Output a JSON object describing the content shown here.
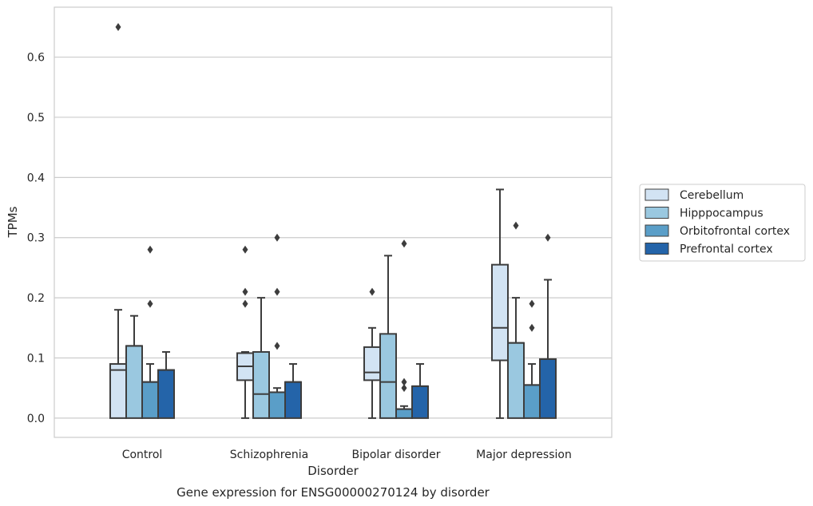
{
  "caption": "Gene expression for ENSG00000270124 by disorder",
  "chart_data": {
    "type": "boxplot",
    "title": "",
    "xlabel": "Disorder",
    "ylabel": "TPMs",
    "ylim": [
      -0.032,
      0.683
    ],
    "yticks": [
      0.0,
      0.1,
      0.2,
      0.3,
      0.4,
      0.5,
      0.6
    ],
    "ytick_labels": [
      "0.0",
      "0.1",
      "0.2",
      "0.3",
      "0.4",
      "0.5",
      "0.6"
    ],
    "grid": "horizontal",
    "legend_placement": "right",
    "categories": [
      "Control",
      "Schizophrenia",
      "Bipolar disorder",
      "Major depression"
    ],
    "series": [
      {
        "name": "Cerebellum",
        "color": "#d2e3f3",
        "boxes": [
          {
            "low": 0.0,
            "q1": 0.0,
            "median": 0.08,
            "q3": 0.09,
            "high": 0.18,
            "outliers": [
              0.65
            ]
          },
          {
            "low": 0.0,
            "q1": 0.063,
            "median": 0.086,
            "q3": 0.108,
            "high": 0.11,
            "outliers": [
              0.19,
              0.21,
              0.28
            ]
          },
          {
            "low": 0.0,
            "q1": 0.063,
            "median": 0.076,
            "q3": 0.118,
            "high": 0.15,
            "outliers": [
              0.21
            ]
          },
          {
            "low": 0.0,
            "q1": 0.096,
            "median": 0.15,
            "q3": 0.255,
            "high": 0.38,
            "outliers": []
          }
        ]
      },
      {
        "name": "Hipppocampus",
        "color": "#9ac8e0",
        "boxes": [
          {
            "low": 0.0,
            "q1": 0.0,
            "median": 0.12,
            "q3": 0.12,
            "high": 0.17,
            "outliers": []
          },
          {
            "low": 0.0,
            "q1": 0.0,
            "median": 0.04,
            "q3": 0.11,
            "high": 0.2,
            "outliers": []
          },
          {
            "low": 0.0,
            "q1": 0.0,
            "median": 0.06,
            "q3": 0.14,
            "high": 0.27,
            "outliers": []
          },
          {
            "low": 0.0,
            "q1": 0.0,
            "median": 0.125,
            "q3": 0.125,
            "high": 0.2,
            "outliers": [
              0.32
            ]
          }
        ]
      },
      {
        "name": "Orbitofrontal cortex",
        "color": "#5a9ec8",
        "boxes": [
          {
            "low": 0.0,
            "q1": 0.0,
            "median": 0.06,
            "q3": 0.06,
            "high": 0.09,
            "outliers": [
              0.19,
              0.28
            ]
          },
          {
            "low": 0.0,
            "q1": 0.0,
            "median": 0.043,
            "q3": 0.043,
            "high": 0.05,
            "outliers": [
              0.12,
              0.21,
              0.3
            ]
          },
          {
            "low": 0.0,
            "q1": 0.0,
            "median": 0.015,
            "q3": 0.015,
            "high": 0.02,
            "outliers": [
              0.05,
              0.06,
              0.29
            ]
          },
          {
            "low": 0.0,
            "q1": 0.0,
            "median": 0.055,
            "q3": 0.055,
            "high": 0.09,
            "outliers": [
              0.15,
              0.19
            ]
          }
        ]
      },
      {
        "name": "Prefrontal cortex",
        "color": "#2464a9",
        "boxes": [
          {
            "low": 0.0,
            "q1": 0.0,
            "median": 0.08,
            "q3": 0.08,
            "high": 0.11,
            "outliers": []
          },
          {
            "low": 0.0,
            "q1": 0.0,
            "median": 0.06,
            "q3": 0.06,
            "high": 0.09,
            "outliers": []
          },
          {
            "low": 0.0,
            "q1": 0.0,
            "median": 0.053,
            "q3": 0.053,
            "high": 0.09,
            "outliers": []
          },
          {
            "low": 0.0,
            "q1": 0.0,
            "median": 0.098,
            "q3": 0.098,
            "high": 0.23,
            "outliers": [
              0.3
            ]
          }
        ]
      }
    ]
  }
}
